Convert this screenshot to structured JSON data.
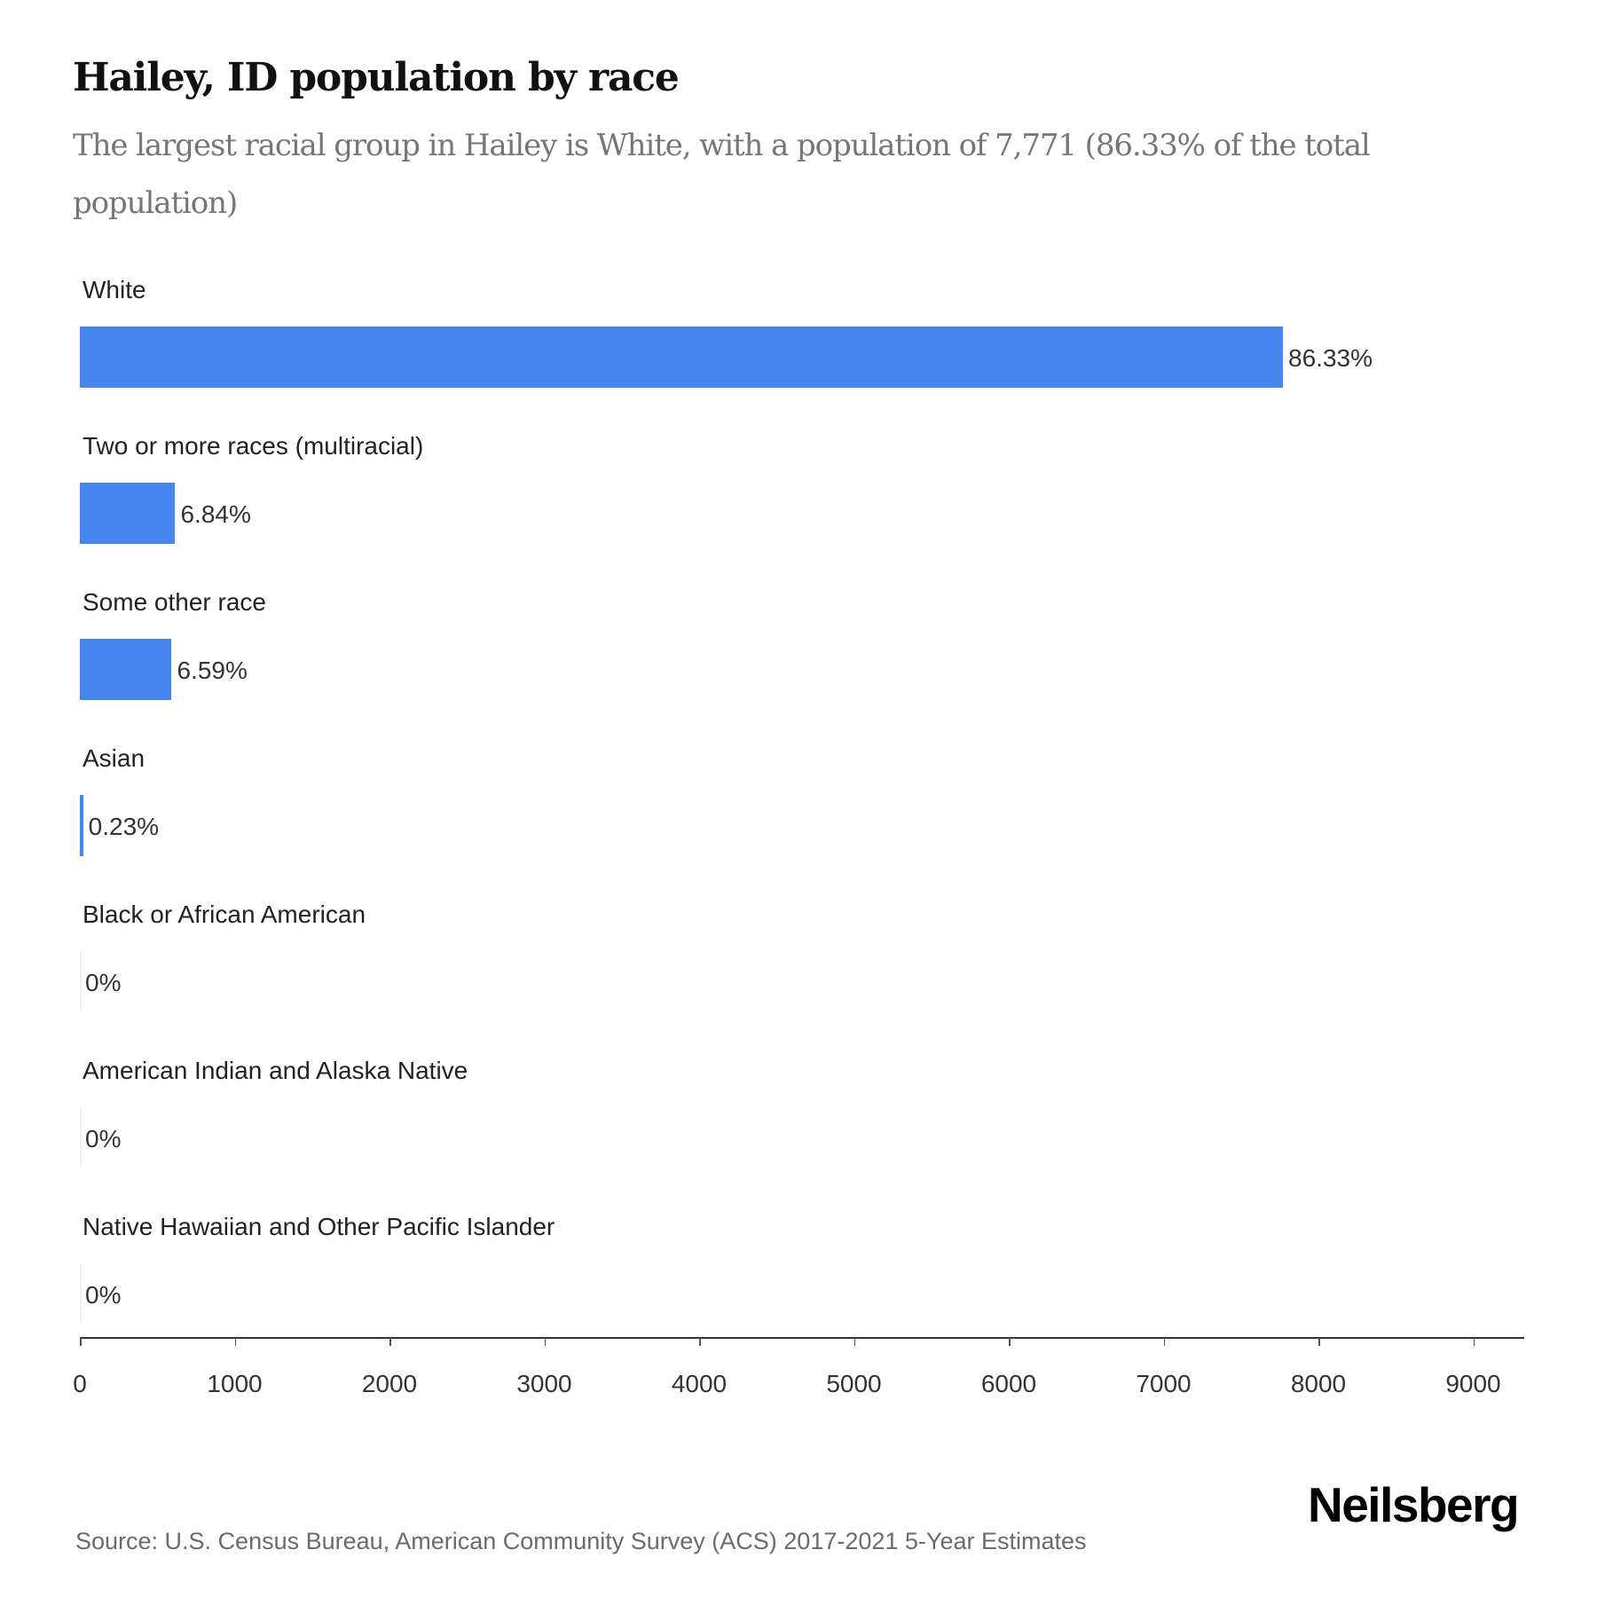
{
  "header": {
    "title": "Hailey, ID population by race",
    "subtitle": "The largest racial group in Hailey is White, with a population of 7,771 (86.33% of the total population)"
  },
  "colors": {
    "bar": "#4487f0",
    "text": "#222222",
    "subtitle": "#767676",
    "axis": "#333333"
  },
  "chart_data": {
    "type": "bar",
    "orientation": "horizontal",
    "title": "Hailey, ID population by race",
    "subtitle": "The largest racial group in Hailey is White, with a population of 7,771 (86.33% of the total population)",
    "categories": [
      "White",
      "Two or more races (multiracial)",
      "Some other race",
      "Asian",
      "Black or African American",
      "American Indian and Alaska Native",
      "Native Hawaiian and Other Pacific Islander"
    ],
    "values": [
      7771,
      616,
      593,
      21,
      0,
      0,
      0
    ],
    "value_labels": [
      "86.33%",
      "6.84%",
      "6.59%",
      "0.23%",
      "0%",
      "0%",
      "0%"
    ],
    "xlabel": "",
    "ylabel": "",
    "xlim": [
      0,
      9300
    ],
    "x_ticks": [
      0,
      1000,
      2000,
      3000,
      4000,
      5000,
      6000,
      7000,
      8000,
      9000
    ],
    "x_tick_labels": [
      "0",
      "1000",
      "2000",
      "3000",
      "4000",
      "5000",
      "6000",
      "7000",
      "8000",
      "9000"
    ],
    "grid": false,
    "legend": null
  },
  "footer": {
    "source": "Source: U.S. Census Bureau, American Community Survey (ACS) 2017-2021 5-Year Estimates",
    "logo": "Neilsberg"
  }
}
